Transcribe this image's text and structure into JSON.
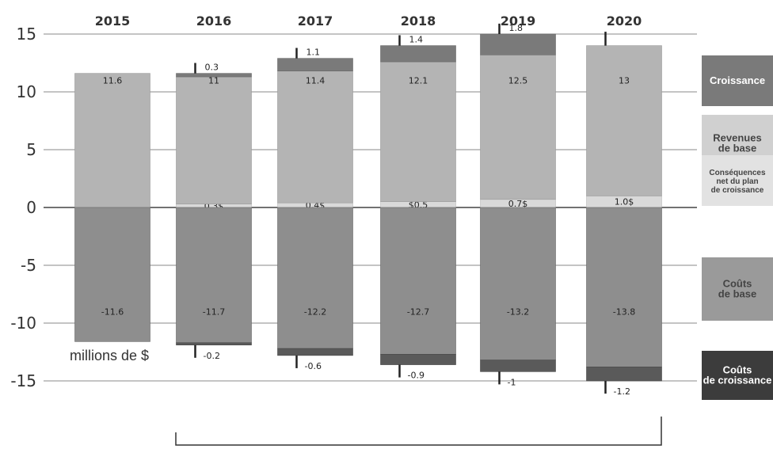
{
  "chart_data": {
    "type": "bar",
    "title": "",
    "xlabel": "",
    "ylabel": "",
    "unit_label": "millions de $",
    "categories": [
      "2015",
      "2016",
      "2017",
      "2018",
      "2019",
      "2020"
    ],
    "ylim": [
      -15,
      15
    ],
    "yticks": [
      15,
      10,
      5,
      0,
      -5,
      -10,
      -15
    ],
    "grid": true,
    "legend_position": "right",
    "series": [
      {
        "name": "Croissance",
        "values": [
          null,
          0.3,
          1.1,
          1.4,
          1.8,
          null
        ],
        "labels": [
          "",
          "0.3",
          "1.1",
          "1.4",
          "1.8",
          ""
        ],
        "color": "#7a7a7a"
      },
      {
        "name": "Revenues de base",
        "values": [
          11.6,
          11,
          11.4,
          12.1,
          12.5,
          13
        ],
        "labels": [
          "11.6",
          "11",
          "11.4",
          "12.1",
          "12.5",
          "13"
        ],
        "color": "#b4b4b4"
      },
      {
        "name": "Conséquences net du plan de croissance",
        "values": [
          null,
          0.3,
          0.4,
          0.5,
          0.7,
          1.0
        ],
        "labels": [
          "",
          "0.3$",
          "0.4$",
          "$0.5",
          "0.7$",
          "1.0$"
        ],
        "color": "#d9d9d9"
      },
      {
        "name": "Coûts de base",
        "values": [
          -11.6,
          -11.7,
          -12.2,
          -12.7,
          -13.2,
          -13.8
        ],
        "labels": [
          "-11.6",
          "-11.7",
          "-12.2",
          "-12.7",
          "-13.2",
          "-13.8"
        ],
        "color": "#8e8e8e"
      },
      {
        "name": "Coûts de croissance",
        "values": [
          null,
          -0.2,
          -0.6,
          -0.9,
          -1,
          -1.2
        ],
        "labels": [
          "",
          "-0.2",
          "-0.6",
          "-0.9",
          "-1",
          "-1.2"
        ],
        "color": "#5a5a5a"
      }
    ],
    "legend": [
      {
        "label": "Croissance",
        "color": "#7a7a7a",
        "text_color": "#ffffff"
      },
      {
        "label": "Revenues de base",
        "color": "#d0d0d0",
        "text_color": "#444444"
      },
      {
        "label": "Conséquences net du plan de croissance",
        "color": "#e2e2e2",
        "text_color": "#444444"
      },
      {
        "label": "Coûts de base",
        "color": "#9a9a9a",
        "text_color": "#444444"
      },
      {
        "label": "Coûts de croissance",
        "color": "#3c3c3c",
        "text_color": "#ffffff"
      }
    ]
  }
}
